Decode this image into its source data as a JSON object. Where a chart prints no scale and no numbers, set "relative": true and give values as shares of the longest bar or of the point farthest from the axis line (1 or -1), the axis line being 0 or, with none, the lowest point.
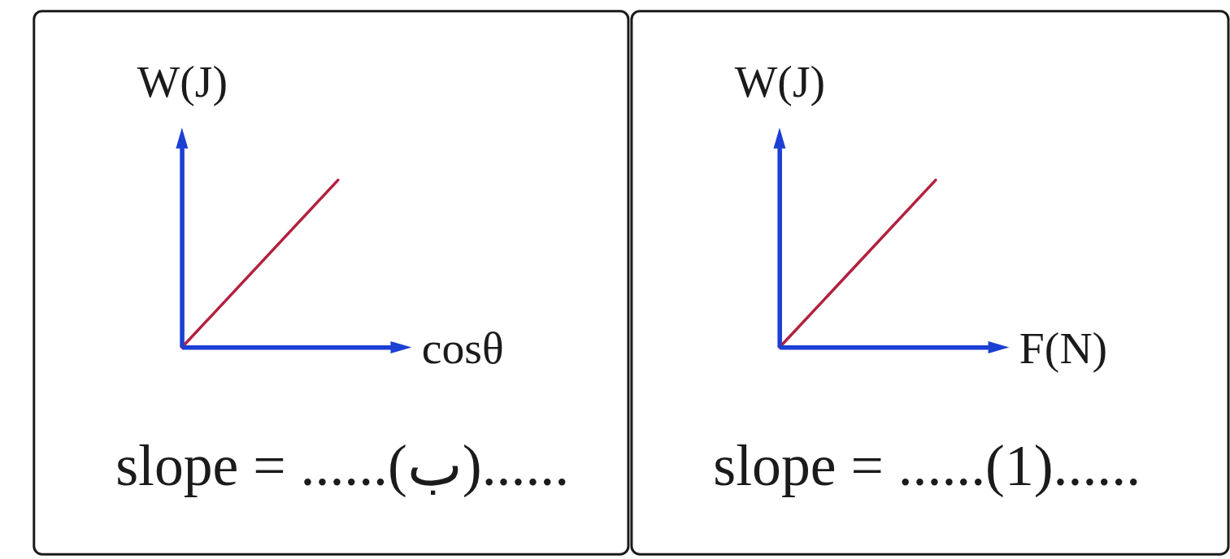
{
  "chart_data": [
    {
      "type": "line",
      "xlabel": "cosθ",
      "ylabel": "W(J)",
      "categories": [
        null,
        null
      ],
      "relative": true,
      "series": [
        {
          "color": "#b3203f",
          "values": [
            0,
            1
          ]
        }
      ],
      "annotations": [
        "slope = ......(ب)......"
      ]
    },
    {
      "type": "line",
      "xlabel": "F(N)",
      "ylabel": "W(J)",
      "categories": [
        null,
        null
      ],
      "relative": true,
      "series": [
        {
          "color": "#b3203f",
          "values": [
            0,
            1
          ]
        }
      ],
      "annotations": [
        "slope = ......(1)......"
      ]
    }
  ]
}
